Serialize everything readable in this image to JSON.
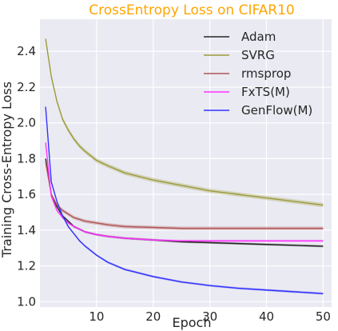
{
  "chart_data": {
    "type": "line",
    "title": "CrossEntropy Loss on CIFAR10",
    "title_color": "#FFA500",
    "xlabel": "Epoch",
    "ylabel": "Training Cross-Entropy Loss",
    "xlim": [
      0,
      51.5
    ],
    "ylim": [
      0.97,
      2.58
    ],
    "xticks": [
      10,
      20,
      30,
      40,
      50
    ],
    "yticks": [
      1.0,
      1.2,
      1.4,
      1.6,
      1.8,
      2.0,
      2.2,
      2.4
    ],
    "grid": true,
    "plot_background": "#EAEAF2",
    "legend_position": "top-right",
    "series": [
      {
        "name": "Adam",
        "color": "#262626",
        "band": 0.006,
        "x": [
          1,
          2,
          3,
          4,
          5,
          6,
          8,
          10,
          12,
          15,
          20,
          25,
          30,
          35,
          40,
          45,
          50
        ],
        "y": [
          1.8,
          1.6,
          1.53,
          1.48,
          1.45,
          1.42,
          1.39,
          1.375,
          1.365,
          1.355,
          1.345,
          1.335,
          1.33,
          1.325,
          1.32,
          1.315,
          1.31
        ]
      },
      {
        "name": "SVRG",
        "color": "#9B9B3A",
        "band": 0.012,
        "x": [
          1,
          2,
          3,
          4,
          5,
          6,
          7,
          8,
          10,
          12,
          15,
          20,
          25,
          30,
          35,
          40,
          45,
          50
        ],
        "y": [
          2.47,
          2.26,
          2.12,
          2.02,
          1.96,
          1.91,
          1.87,
          1.84,
          1.79,
          1.76,
          1.72,
          1.68,
          1.65,
          1.62,
          1.6,
          1.58,
          1.56,
          1.54
        ]
      },
      {
        "name": "rmsprop",
        "color": "#B05555",
        "band": 0.01,
        "x": [
          1,
          2,
          3,
          4,
          5,
          6,
          8,
          10,
          12,
          15,
          20,
          25,
          30,
          35,
          40,
          45,
          50
        ],
        "y": [
          1.78,
          1.6,
          1.54,
          1.51,
          1.49,
          1.47,
          1.45,
          1.44,
          1.43,
          1.42,
          1.415,
          1.41,
          1.41,
          1.41,
          1.41,
          1.41,
          1.41
        ]
      },
      {
        "name": "FxTS(M)",
        "color": "#FF33FF",
        "band": 0.006,
        "x": [
          1,
          2,
          3,
          4,
          5,
          6,
          8,
          10,
          12,
          15,
          20,
          25,
          30,
          35,
          40,
          45,
          50
        ],
        "y": [
          1.89,
          1.59,
          1.51,
          1.47,
          1.44,
          1.42,
          1.39,
          1.375,
          1.365,
          1.355,
          1.345,
          1.34,
          1.34,
          1.34,
          1.34,
          1.34,
          1.34
        ]
      },
      {
        "name": "GenFlow(M)",
        "color": "#3333FF",
        "band": 0.006,
        "x": [
          1,
          2,
          3,
          4,
          5,
          6,
          7,
          8,
          10,
          12,
          15,
          20,
          25,
          30,
          35,
          40,
          45,
          50
        ],
        "y": [
          2.09,
          1.67,
          1.56,
          1.48,
          1.42,
          1.38,
          1.34,
          1.31,
          1.26,
          1.22,
          1.18,
          1.14,
          1.11,
          1.09,
          1.075,
          1.065,
          1.055,
          1.045
        ]
      }
    ]
  }
}
